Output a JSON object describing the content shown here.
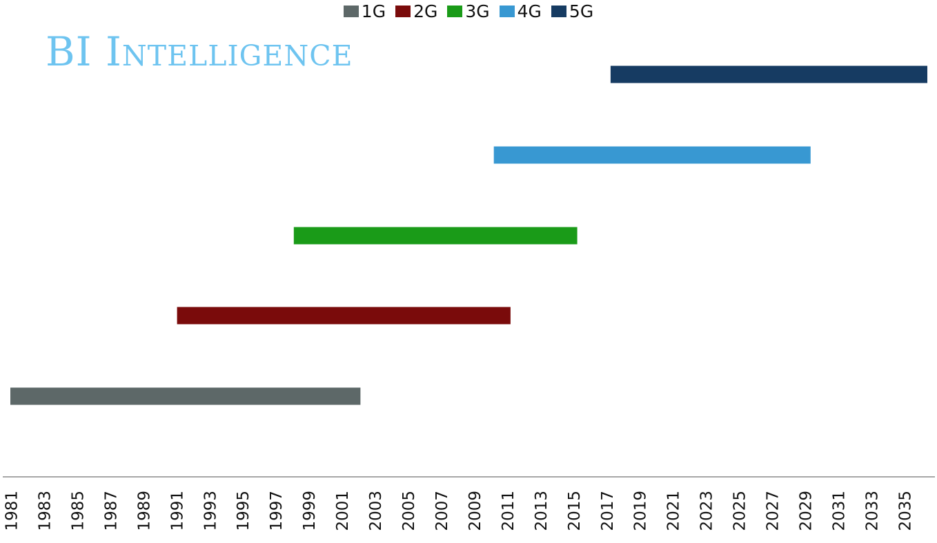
{
  "brand": {
    "text": "BI Intelligence",
    "color": "#6ec4f0"
  },
  "chart_data": {
    "type": "bar",
    "orientation": "horizontal-range",
    "title": "",
    "xlabel": "",
    "ylabel": "",
    "xlim": [
      1981,
      2036
    ],
    "x_ticks": [
      1981,
      1983,
      1985,
      1987,
      1989,
      1991,
      1993,
      1995,
      1997,
      1999,
      2001,
      2003,
      2005,
      2007,
      2009,
      2011,
      2013,
      2015,
      2017,
      2019,
      2021,
      2023,
      2025,
      2027,
      2029,
      2031,
      2033,
      2035
    ],
    "grid": false,
    "legend_position": "top-center",
    "series": [
      {
        "name": "1G",
        "start": 1981,
        "end": 2002,
        "color": "#5d6868"
      },
      {
        "name": "2G",
        "start": 1991,
        "end": 2011,
        "color": "#7a0b0b"
      },
      {
        "name": "3G",
        "start": 1998,
        "end": 2015,
        "color": "#1a9b18"
      },
      {
        "name": "4G",
        "start": 2010,
        "end": 2029,
        "color": "#3898d2"
      },
      {
        "name": "5G",
        "start": 2017,
        "end": 2036,
        "color": "#163b62"
      }
    ]
  }
}
